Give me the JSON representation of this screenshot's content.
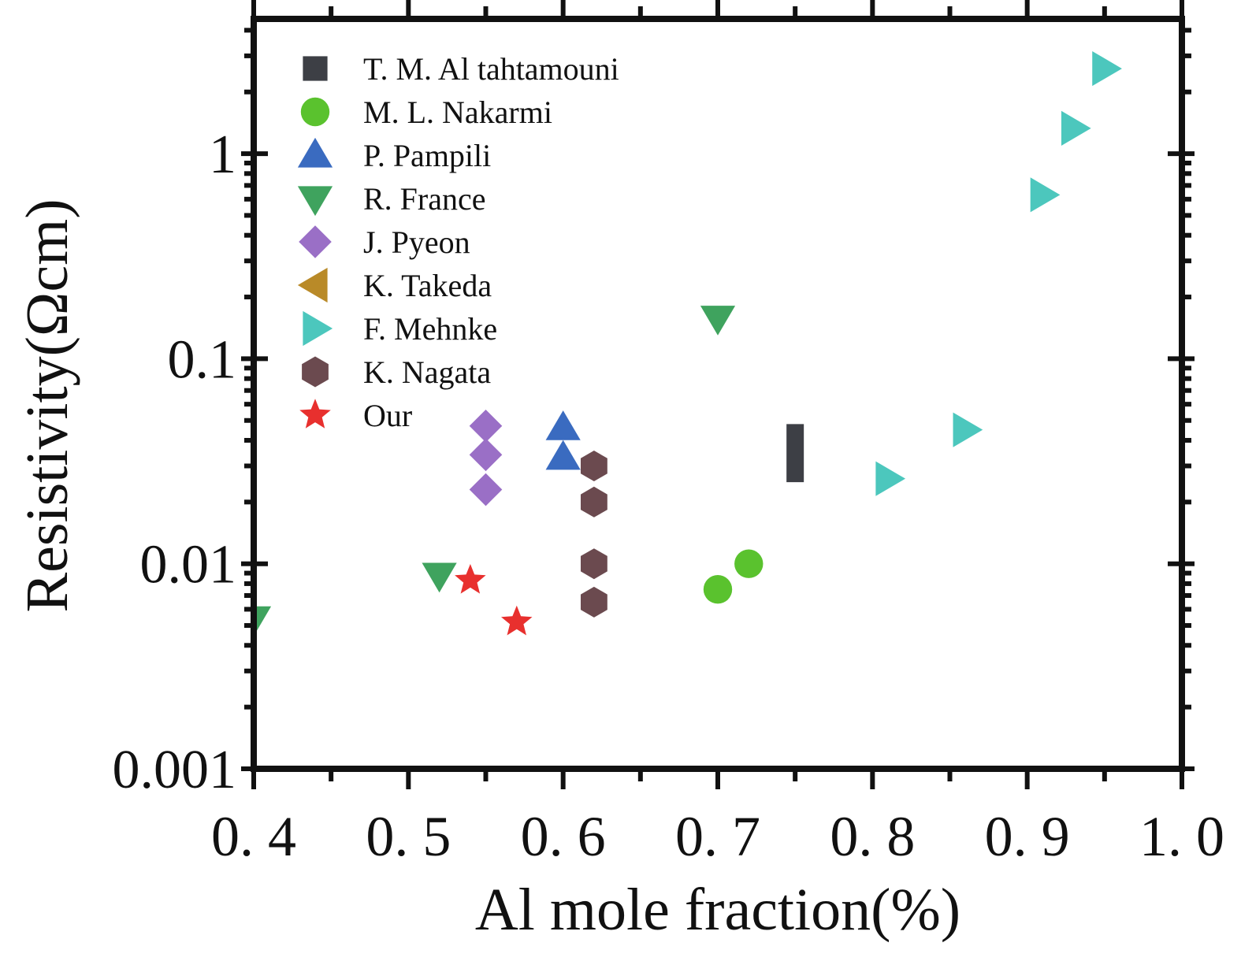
{
  "chart_data": {
    "type": "scatter",
    "xlabel": "Al mole fraction(%)",
    "ylabel": "Resistivity(Ωcm)",
    "xlim": [
      0.4,
      1.0
    ],
    "ylim": [
      0.001,
      5
    ],
    "yscale": "log",
    "x_ticks": [
      "0. 4",
      "0. 5",
      "0. 6",
      "0. 7",
      "0. 8",
      "0. 9",
      "1. 0"
    ],
    "x_tick_values": [
      0.4,
      0.5,
      0.6,
      0.7,
      0.8,
      0.9,
      1.0
    ],
    "y_ticks": [
      "0.001",
      "0.01",
      "0.1",
      "1"
    ],
    "y_tick_values": [
      0.001,
      0.01,
      0.1,
      1
    ],
    "grid": false,
    "legend_position": "top-left",
    "series": [
      {
        "name": "T. M. Al tahtamouni",
        "marker": "square",
        "color": "#3d3f45",
        "points": [],
        "ranges": [
          {
            "x": 0.75,
            "y": [
              0.025,
              0.048
            ]
          }
        ]
      },
      {
        "name": "M. L. Nakarmi",
        "marker": "circle",
        "color": "#5ac22e",
        "points": [
          {
            "x": 0.7,
            "y": 0.0075
          },
          {
            "x": 0.72,
            "y": 0.01
          }
        ]
      },
      {
        "name": "P. Pampili",
        "marker": "triangle-up",
        "color": "#3a6bc0",
        "points": [
          {
            "x": 0.6,
            "y": 0.046
          },
          {
            "x": 0.6,
            "y": 0.033
          }
        ]
      },
      {
        "name": "R. France",
        "marker": "triangle-down",
        "color": "#3fa35e",
        "points": [
          {
            "x": 0.4,
            "y": 0.0054
          },
          {
            "x": 0.52,
            "y": 0.0088
          },
          {
            "x": 0.7,
            "y": 0.158
          }
        ]
      },
      {
        "name": "J. Pyeon",
        "marker": "diamond",
        "color": "#9a6fc6",
        "points": [
          {
            "x": 0.55,
            "y": 0.047
          },
          {
            "x": 0.55,
            "y": 0.034
          },
          {
            "x": 0.55,
            "y": 0.023
          }
        ]
      },
      {
        "name": "K. Takeda",
        "marker": "triangle-left",
        "color": "#b98a28",
        "points": []
      },
      {
        "name": "F. Mehnke",
        "marker": "triangle-right",
        "color": "#4cc7bd",
        "points": [
          {
            "x": 0.81,
            "y": 0.026
          },
          {
            "x": 0.86,
            "y": 0.045
          },
          {
            "x": 0.91,
            "y": 0.63
          },
          {
            "x": 0.93,
            "y": 1.33
          },
          {
            "x": 0.95,
            "y": 2.6
          }
        ]
      },
      {
        "name": "K. Nagata",
        "marker": "hexagon",
        "color": "#6b4a4f",
        "points": [
          {
            "x": 0.62,
            "y": 0.03
          },
          {
            "x": 0.62,
            "y": 0.02
          },
          {
            "x": 0.62,
            "y": 0.01
          },
          {
            "x": 0.62,
            "y": 0.0065
          }
        ]
      },
      {
        "name": "Our",
        "marker": "star",
        "color": "#e8302e",
        "points": [
          {
            "x": 0.54,
            "y": 0.0083
          },
          {
            "x": 0.57,
            "y": 0.0052
          }
        ]
      }
    ]
  }
}
